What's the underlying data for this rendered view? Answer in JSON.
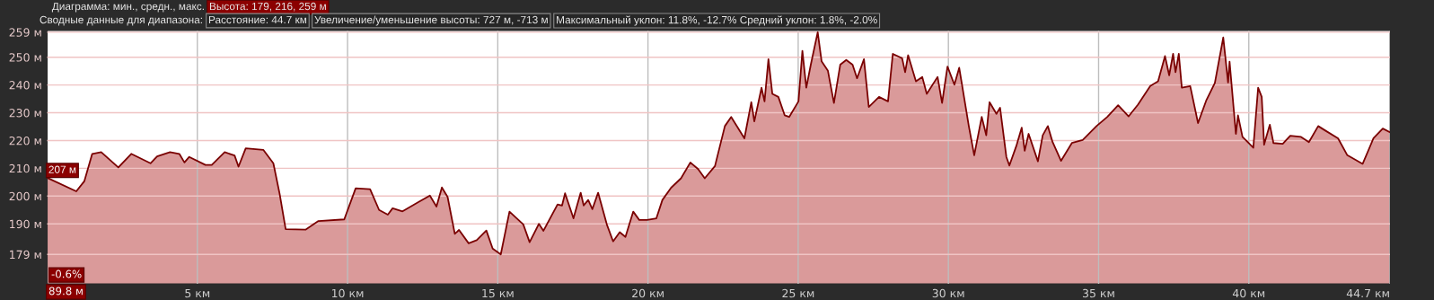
{
  "chart_data": {
    "type": "area",
    "x": [
      0,
      0.97,
      1.24,
      1.5,
      1.8,
      2.37,
      2.8,
      3.44,
      3.66,
      4.09,
      4.4,
      4.57,
      4.73,
      5.27,
      5.48,
      5.91,
      6.24,
      6.37,
      6.61,
      7.2,
      7.53,
      7.74,
      7.94,
      8.6,
      9.03,
      9.89,
      10.27,
      10.75,
      11.05,
      11.34,
      11.5,
      11.83,
      12.37,
      12.74,
      12.96,
      13.14,
      13.33,
      13.57,
      13.71,
      14.03,
      14.3,
      14.62,
      14.83,
      15.1,
      15.39,
      15.85,
      16.06,
      16.37,
      16.52,
      16.99,
      17.14,
      17.24,
      17.52,
      17.76,
      17.86,
      18.01,
      18.15,
      18.34,
      18.63,
      18.84,
      19.06,
      19.25,
      19.51,
      19.71,
      19.97,
      20.28,
      20.48,
      20.77,
      21.1,
      21.41,
      21.67,
      21.89,
      22.23,
      22.56,
      22.77,
      23.21,
      23.44,
      23.54,
      23.78,
      23.88,
      24.01,
      24.14,
      24.34,
      24.55,
      24.7,
      25.01,
      25.14,
      25.27,
      25.42,
      25.65,
      25.78,
      25.99,
      26.19,
      26.4,
      26.6,
      26.81,
      26.96,
      27.19,
      27.35,
      27.69,
      27.99,
      28.15,
      28.46,
      28.56,
      28.66,
      28.92,
      29.13,
      29.28,
      29.64,
      29.79,
      29.97,
      30.2,
      30.36,
      30.68,
      30.86,
      31.11,
      31.26,
      31.37,
      31.6,
      31.72,
      31.93,
      32.03,
      32.26,
      32.44,
      32.54,
      32.67,
      32.98,
      33.14,
      33.31,
      33.46,
      33.75,
      34.11,
      34.47,
      34.93,
      35.29,
      35.65,
      36.0,
      36.31,
      36.72,
      36.98,
      37.21,
      37.35,
      37.48,
      37.56,
      37.67,
      37.77,
      38.05,
      38.31,
      38.59,
      38.87,
      39.15,
      39.31,
      39.36,
      39.57,
      39.64,
      39.79,
      40.15,
      40.31,
      40.43,
      40.51,
      40.7,
      40.82,
      41.13,
      41.38,
      41.74,
      42.0,
      42.31,
      42.56,
      42.97,
      43.28,
      43.79,
      44.15,
      44.46,
      44.7
    ],
    "series": [
      {
        "color": "#7a0000",
        "values": [
          206.6,
          201.7,
          205.4,
          215.2,
          215.8,
          210.3,
          215.2,
          211.8,
          214.3,
          215.8,
          215.2,
          212.1,
          214.1,
          211.2,
          211.2,
          215.8,
          214.6,
          210.6,
          217.2,
          216.6,
          211.8,
          200.8,
          188.1,
          187.9,
          191,
          191.6,
          202.8,
          202.5,
          195,
          193.3,
          195.6,
          194.5,
          197.9,
          200.2,
          196.2,
          203.1,
          199.7,
          186.4,
          187.8,
          183,
          184.1,
          187.6,
          181.1,
          179,
          194.4,
          189.8,
          183.4,
          190,
          187.5,
          197,
          196.6,
          201,
          192,
          201.2,
          196.6,
          198.6,
          195.3,
          201.2,
          189.8,
          183.7,
          187,
          185.3,
          194.4,
          191.4,
          191.4,
          192,
          198.6,
          203,
          206.4,
          212.1,
          209.7,
          206.4,
          210.8,
          225.2,
          228.5,
          220.8,
          233.8,
          226.9,
          239,
          234.1,
          249.3,
          236.8,
          235.7,
          229.1,
          228.5,
          234.1,
          252.3,
          239,
          247.3,
          259,
          248.5,
          245.1,
          233.5,
          247.3,
          249,
          247.3,
          242.4,
          249.3,
          232.1,
          235.7,
          234.1,
          251.2,
          249.6,
          244.6,
          250.7,
          241.3,
          242.9,
          236.8,
          242.9,
          233.5,
          246.6,
          240.1,
          246.2,
          225.2,
          214.7,
          228.5,
          221.9,
          233.8,
          229.6,
          231.8,
          214.1,
          211,
          218,
          224.6,
          216.3,
          222.4,
          212.5,
          221.9,
          225.2,
          219.7,
          212.7,
          219.1,
          220.2,
          225.2,
          228.5,
          232.7,
          228.7,
          232.9,
          239.6,
          241.3,
          250.4,
          243.5,
          251.2,
          244.6,
          251.2,
          239,
          239.6,
          226.3,
          234.6,
          240.7,
          257.1,
          240.9,
          248.4,
          222.4,
          229.1,
          221.3,
          217.4,
          239,
          235.7,
          218.5,
          225.7,
          219.1,
          218.8,
          221.7,
          221.3,
          219.4,
          225.2,
          223.5,
          220.8,
          214.7,
          211.6,
          220.8,
          224.3,
          223
        ]
      }
    ],
    "xlim": [
      0,
      44.7
    ],
    "xticks": [
      {
        "value": 5,
        "label": "5 км"
      },
      {
        "value": 10,
        "label": "10 км"
      },
      {
        "value": 15,
        "label": "15 км"
      },
      {
        "value": 20,
        "label": "20 км"
      },
      {
        "value": 25,
        "label": "25 км"
      },
      {
        "value": 30,
        "label": "30 км"
      },
      {
        "value": 35,
        "label": "35 км"
      },
      {
        "value": 40,
        "label": "40 км"
      },
      {
        "value": 44.7,
        "label": "44.7 км"
      }
    ],
    "ylim": [
      168.4,
      259.6
    ],
    "yticks": [
      {
        "value": 179,
        "label": "179 м"
      },
      {
        "value": 190,
        "label": "190 м"
      },
      {
        "value": 200,
        "label": "200 м"
      },
      {
        "value": 210,
        "label": "210 м"
      },
      {
        "value": 220,
        "label": "220 м"
      },
      {
        "value": 230,
        "label": "230 м"
      },
      {
        "value": 240,
        "label": "240 м"
      },
      {
        "value": 250,
        "label": "250 м"
      },
      {
        "value": 259,
        "label": "259 м"
      }
    ],
    "grid": true,
    "annotations": [
      "Диаграмма: мин., средн., макс.",
      "Высота: 179, 216, 259 м",
      "Сводные данные для диапазона:",
      "Расстояние: 44.7 км",
      "Увеличение/уменьшение высоты: 727 м, -713 м",
      "Максимальный уклон: 11.8%, -12.7% Средний уклон: 1.8%, -2.0%",
      {
        "text": "207 м",
        "x": 0,
        "y": 207
      },
      "-0.6%",
      "89.8 м"
    ]
  }
}
